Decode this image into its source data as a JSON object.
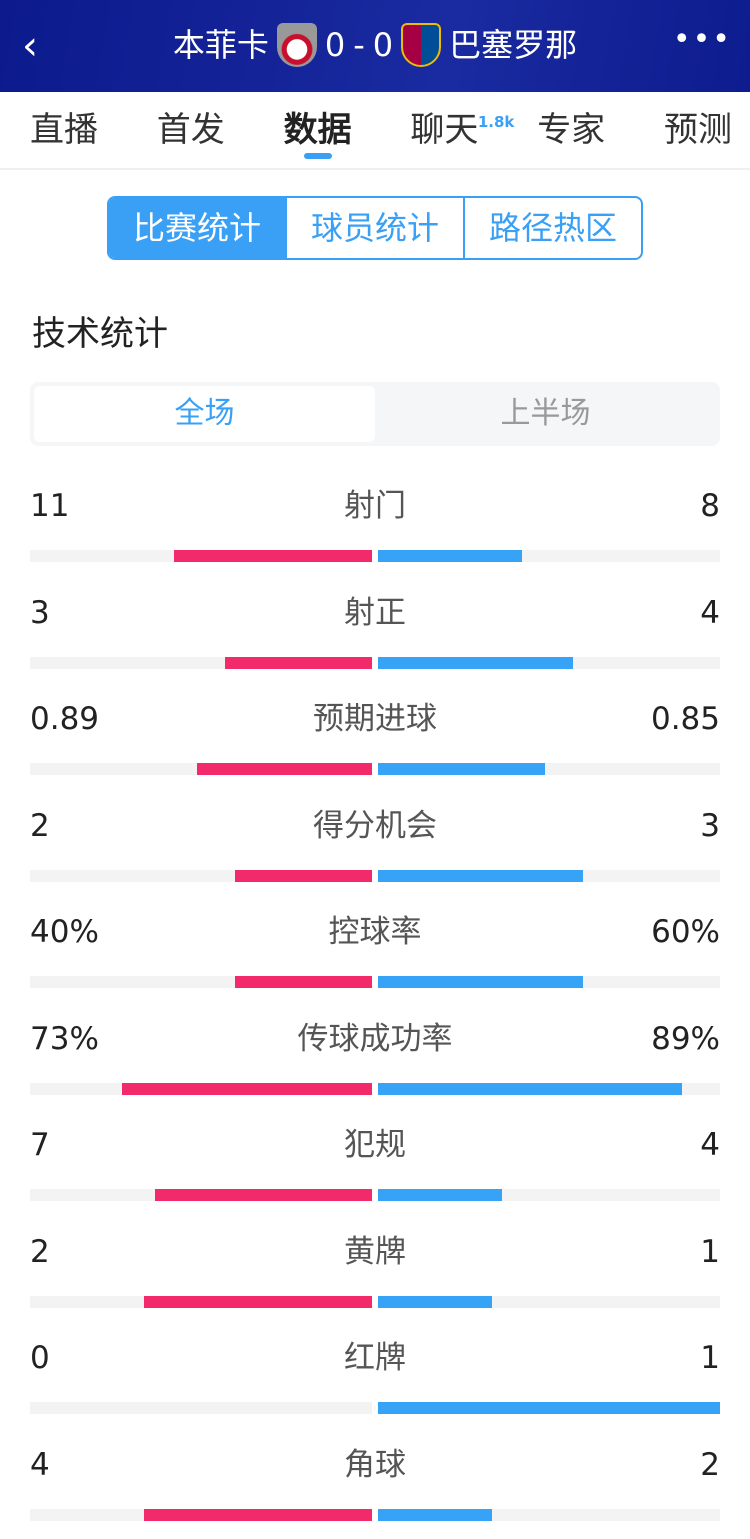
{
  "header": {
    "back_icon": "chevron-left-icon",
    "home_team": "本菲卡",
    "home_score": "0",
    "separator": "-",
    "away_score": "0",
    "away_team": "巴塞罗那",
    "more_icon": "more-horizontal-icon"
  },
  "nav_tabs": [
    {
      "label": "直播"
    },
    {
      "label": "首发"
    },
    {
      "label": "数据",
      "active": true
    },
    {
      "label": "聊天",
      "badge": "1.8k"
    },
    {
      "label": "专家"
    },
    {
      "label": "预测"
    }
  ],
  "segments": [
    "比赛统计",
    "球员统计",
    "路径热区"
  ],
  "section_title": "技术统计",
  "periods": [
    "全场",
    "上半场"
  ],
  "colors": {
    "home": "#f2296a",
    "away": "#36a3f7",
    "accent": "#3aa0f5",
    "header_bg": "#0b1a8c"
  },
  "stats": [
    {
      "label": "射门",
      "home": "11",
      "away": "8",
      "home_pct": 57.9,
      "away_pct": 42.1
    },
    {
      "label": "射正",
      "home": "3",
      "away": "4",
      "home_pct": 42.9,
      "away_pct": 57.1
    },
    {
      "label": "预期进球",
      "home": "0.89",
      "away": "0.85",
      "home_pct": 51.1,
      "away_pct": 48.9
    },
    {
      "label": "得分机会",
      "home": "2",
      "away": "3",
      "home_pct": 40,
      "away_pct": 60
    },
    {
      "label": "控球率",
      "home": "40%",
      "away": "60%",
      "home_pct": 40,
      "away_pct": 60
    },
    {
      "label": "传球成功率",
      "home": "73%",
      "away": "89%",
      "home_pct": 73,
      "away_pct": 89
    },
    {
      "label": "犯规",
      "home": "7",
      "away": "4",
      "home_pct": 63.6,
      "away_pct": 36.4
    },
    {
      "label": "黄牌",
      "home": "2",
      "away": "1",
      "home_pct": 66.7,
      "away_pct": 33.3
    },
    {
      "label": "红牌",
      "home": "0",
      "away": "1",
      "home_pct": 0,
      "away_pct": 100
    },
    {
      "label": "角球",
      "home": "4",
      "away": "2",
      "home_pct": 66.7,
      "away_pct": 33.3
    }
  ]
}
